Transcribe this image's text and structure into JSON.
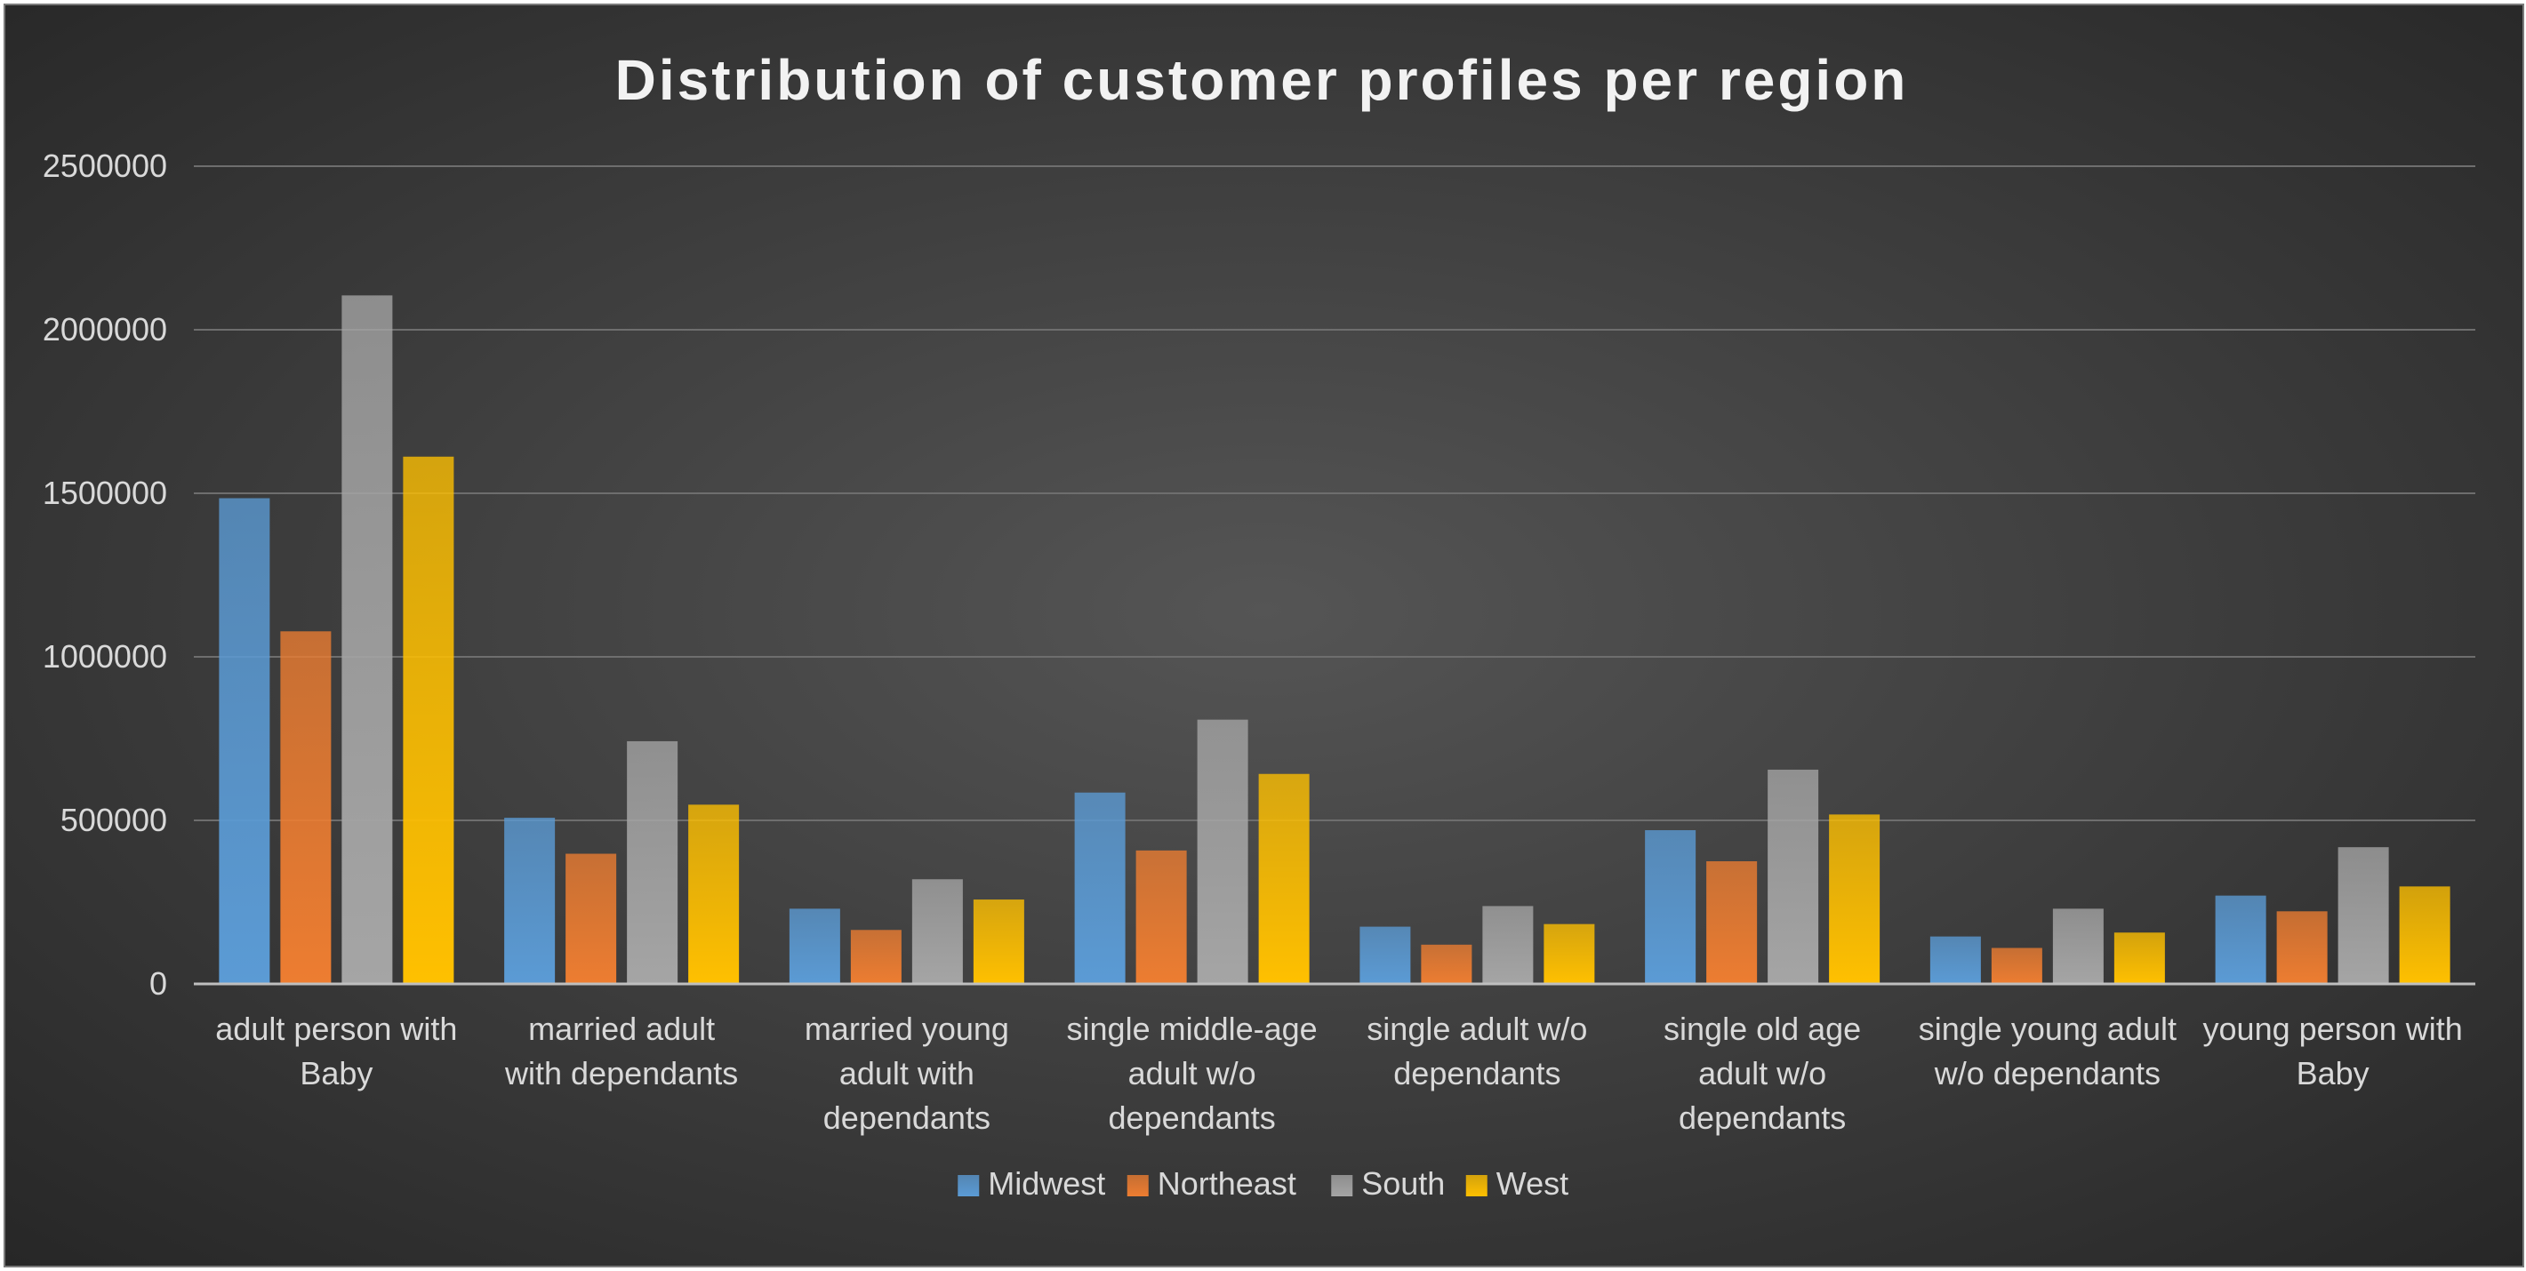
{
  "chart_data": {
    "type": "bar",
    "title": "Distribution of customer profiles per region",
    "xlabel": "",
    "ylabel": "",
    "ylim": [
      0,
      2500000
    ],
    "yticks": [
      0,
      500000,
      1000000,
      1500000,
      2000000,
      2500000
    ],
    "ytick_labels": [
      "0",
      "500000",
      "1000000",
      "1500000",
      "2000000",
      "2500000"
    ],
    "grid": true,
    "legend_position": "bottom",
    "categories": [
      [
        "adult person with",
        "Baby"
      ],
      [
        "married  adult",
        "with dependants"
      ],
      [
        "married young",
        "adult with",
        "dependants"
      ],
      [
        "single  middle-age",
        "adult w/o",
        "dependants"
      ],
      [
        "single adult w/o",
        "dependants"
      ],
      [
        "single old age",
        "adult w/o",
        "dependants"
      ],
      [
        "single young adult",
        "w/o dependants"
      ],
      [
        "young person with",
        "Baby"
      ]
    ],
    "series": [
      {
        "name": "Midwest",
        "color": "#5b9bd5",
        "values": [
          1485000,
          508000,
          230000,
          585000,
          175000,
          470000,
          145000,
          270000
        ]
      },
      {
        "name": "Northeast",
        "color": "#ed7d31",
        "values": [
          1078000,
          398000,
          165000,
          408000,
          120000,
          375000,
          110000,
          222000
        ]
      },
      {
        "name": "South",
        "color": "#a5a5a5",
        "values": [
          2105000,
          742000,
          320000,
          808000,
          238000,
          655000,
          230000,
          418000
        ]
      },
      {
        "name": "West",
        "color": "#ffc000",
        "values": [
          1612000,
          548000,
          258000,
          642000,
          183000,
          518000,
          157000,
          298000
        ]
      }
    ]
  }
}
